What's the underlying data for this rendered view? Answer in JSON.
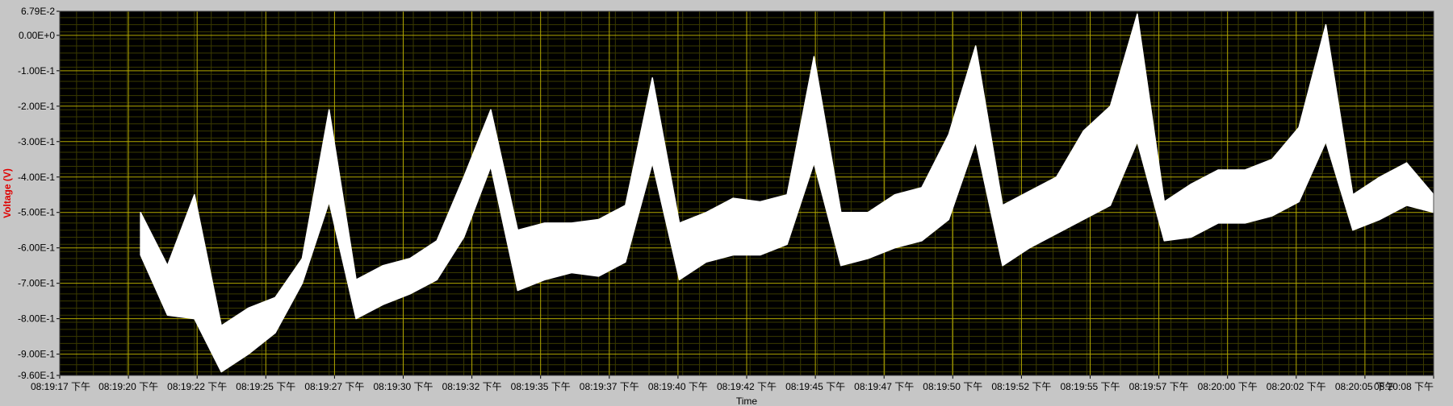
{
  "chart_data": {
    "type": "line",
    "title": "",
    "xlabel": "Time",
    "ylabel": "Voltage (V)",
    "ylim": [
      -0.96,
      0.0679
    ],
    "y_tick_values": [
      0.0679,
      0,
      -0.1,
      -0.2,
      -0.3,
      -0.4,
      -0.5,
      -0.6,
      -0.7,
      -0.8,
      -0.9,
      -0.96
    ],
    "y_tick_labels": [
      "6.79E-2",
      "0.00E+0",
      "-1.00E-1",
      "-2.00E-1",
      "-3.00E-1",
      "-4.00E-1",
      "-5.00E-1",
      "-6.00E-1",
      "-7.00E-1",
      "-8.00E-1",
      "-9.00E-1",
      "-9.60E-1"
    ],
    "x_range_seconds": [
      "08:19:17",
      "08:20:08"
    ],
    "x_tick_labels": [
      "08:19:17 下午",
      "08:19:20 下午",
      "08:19:22 下午",
      "08:19:25 下午",
      "08:19:27 下午",
      "08:19:30 下午",
      "08:19:32 下午",
      "08:19:35 下午",
      "08:19:37 下午",
      "08:19:40 下午",
      "08:19:42 下午",
      "08:19:45 下午",
      "08:19:47 下午",
      "08:19:50 下午",
      "08:19:52 下午",
      "08:19:55 下午",
      "08:19:57 下午",
      "08:20:00 下午",
      "08:20:02 下午",
      "08:20:05 下午",
      "08:20:08 下午"
    ],
    "grid": true,
    "colors": {
      "plot_bg": "#000000",
      "grid_major": "#b3a800",
      "grid_minor": "#3a3a00",
      "trace": "#ffffff",
      "frame": "#c6c6c6",
      "ylabel": "#e00000"
    },
    "series": [
      {
        "x": [
          "08:19:20",
          "08:19:21",
          "08:19:22",
          "08:19:23",
          "08:19:24",
          "08:19:25",
          "08:19:26",
          "08:19:27",
          "08:19:28",
          "08:19:29",
          "08:19:30",
          "08:19:31",
          "08:19:32",
          "08:19:33",
          "08:19:34",
          "08:19:35",
          "08:19:36",
          "08:19:37",
          "08:19:38",
          "08:19:39",
          "08:19:40",
          "08:19:41",
          "08:19:42",
          "08:19:43",
          "08:19:44",
          "08:19:45",
          "08:19:46",
          "08:19:47",
          "08:19:48",
          "08:19:49",
          "08:19:50",
          "08:19:51",
          "08:19:52",
          "08:19:53",
          "08:19:54",
          "08:19:55",
          "08:19:56",
          "08:19:57",
          "08:19:58",
          "08:19:59",
          "08:20:00",
          "08:20:01",
          "08:20:02",
          "08:20:03",
          "08:20:04",
          "08:20:05",
          "08:20:06",
          "08:20:07",
          "08:20:08"
        ],
        "upper": [
          -0.5,
          -0.65,
          -0.45,
          -0.82,
          -0.77,
          -0.74,
          -0.63,
          -0.21,
          -0.69,
          -0.65,
          -0.63,
          -0.58,
          -0.4,
          -0.21,
          -0.55,
          -0.53,
          -0.53,
          -0.52,
          -0.48,
          -0.12,
          -0.53,
          -0.5,
          -0.46,
          -0.47,
          -0.45,
          -0.06,
          -0.5,
          -0.5,
          -0.45,
          -0.43,
          -0.28,
          -0.03,
          -0.48,
          -0.44,
          -0.4,
          -0.27,
          -0.2,
          0.06,
          -0.47,
          -0.42,
          -0.38,
          -0.38,
          -0.35,
          -0.26,
          0.03,
          -0.45,
          -0.4,
          -0.36,
          -0.45
        ],
        "lower": [
          -0.62,
          -0.79,
          -0.8,
          -0.95,
          -0.9,
          -0.84,
          -0.7,
          -0.47,
          -0.8,
          -0.76,
          -0.73,
          -0.69,
          -0.57,
          -0.37,
          -0.72,
          -0.69,
          -0.67,
          -0.68,
          -0.64,
          -0.36,
          -0.69,
          -0.64,
          -0.62,
          -0.62,
          -0.59,
          -0.36,
          -0.65,
          -0.63,
          -0.6,
          -0.58,
          -0.52,
          -0.3,
          -0.65,
          -0.6,
          -0.56,
          -0.52,
          -0.48,
          -0.3,
          -0.58,
          -0.57,
          -0.53,
          -0.53,
          -0.51,
          -0.47,
          -0.3,
          -0.55,
          -0.52,
          -0.48,
          -0.5
        ]
      }
    ]
  }
}
